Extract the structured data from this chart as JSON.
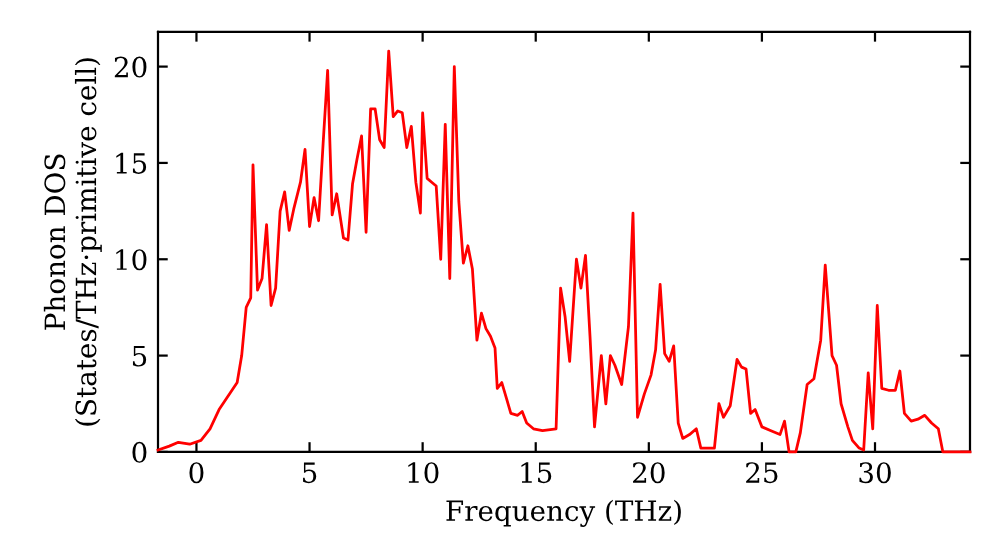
{
  "chart_data": {
    "type": "line",
    "xlabel": "Frequency (THz)",
    "ylabel": "Phonon DOS\n(States/THz·primitive cell)",
    "xlim": [
      -1.7,
      34.2
    ],
    "ylim": [
      0,
      21.8
    ],
    "xticks": [
      0,
      5,
      10,
      15,
      20,
      25,
      30
    ],
    "yticks": [
      0,
      5,
      10,
      15,
      20
    ],
    "grid": false,
    "marker": "none",
    "line_style": "solid",
    "series": [
      {
        "color": "#ff0000",
        "x": [
          -1.7,
          -1.2,
          -0.8,
          -0.3,
          0.2,
          0.6,
          1.0,
          1.4,
          1.8,
          2.0,
          2.2,
          2.4,
          2.5,
          2.7,
          2.9,
          3.1,
          3.3,
          3.5,
          3.7,
          3.9,
          4.1,
          4.3,
          4.6,
          4.8,
          5.0,
          5.2,
          5.4,
          5.6,
          5.8,
          6.0,
          6.2,
          6.5,
          6.7,
          6.9,
          7.1,
          7.3,
          7.5,
          7.7,
          7.9,
          8.1,
          8.3,
          8.5,
          8.7,
          8.9,
          9.1,
          9.3,
          9.5,
          9.7,
          9.9,
          10.0,
          10.2,
          10.4,
          10.6,
          10.8,
          11.0,
          11.2,
          11.4,
          11.6,
          11.8,
          12.0,
          12.2,
          12.4,
          12.6,
          12.8,
          13.0,
          13.2,
          13.3,
          13.5,
          13.7,
          13.9,
          14.2,
          14.4,
          14.6,
          14.9,
          15.3,
          15.9,
          16.1,
          16.3,
          16.5,
          16.8,
          17.0,
          17.2,
          17.4,
          17.6,
          17.9,
          18.1,
          18.3,
          18.5,
          18.8,
          19.1,
          19.3,
          19.5,
          19.8,
          20.1,
          20.3,
          20.5,
          20.7,
          20.9,
          21.1,
          21.3,
          21.5,
          21.8,
          22.1,
          22.3,
          22.9,
          23.1,
          23.3,
          23.6,
          23.9,
          24.1,
          24.3,
          24.5,
          24.7,
          25.0,
          25.4,
          25.8,
          26.0,
          26.2,
          26.5,
          26.7,
          27.0,
          27.3,
          27.6,
          27.8,
          28.1,
          28.3,
          28.5,
          28.8,
          29.0,
          29.3,
          29.5,
          29.7,
          29.9,
          30.1,
          30.3,
          30.6,
          30.9,
          31.1,
          31.3,
          31.6,
          31.9,
          32.2,
          32.5,
          32.8,
          33.0,
          34.2
        ],
        "values": [
          0.1,
          0.3,
          0.5,
          0.4,
          0.6,
          1.2,
          2.2,
          2.9,
          3.6,
          5.0,
          7.5,
          8.0,
          14.9,
          8.4,
          9.0,
          11.8,
          7.6,
          8.5,
          12.5,
          13.5,
          11.5,
          12.6,
          14.0,
          15.7,
          11.7,
          13.2,
          12.0,
          16.0,
          19.8,
          12.3,
          13.4,
          11.1,
          11.0,
          13.9,
          15.2,
          16.4,
          11.4,
          17.8,
          17.8,
          16.2,
          15.8,
          20.8,
          17.4,
          17.7,
          17.6,
          15.8,
          16.9,
          14.0,
          12.4,
          17.6,
          14.2,
          14.0,
          13.8,
          10.0,
          17.0,
          9.0,
          20.0,
          13.0,
          9.8,
          10.7,
          9.5,
          5.8,
          7.2,
          6.4,
          6.0,
          5.4,
          3.3,
          3.6,
          2.8,
          2.0,
          1.9,
          2.1,
          1.5,
          1.2,
          1.1,
          1.2,
          8.5,
          7.0,
          4.7,
          10.0,
          8.5,
          10.2,
          6.0,
          1.3,
          5.0,
          2.5,
          5.0,
          4.5,
          3.5,
          6.5,
          12.4,
          1.8,
          3.0,
          4.0,
          5.3,
          8.7,
          5.1,
          4.7,
          5.5,
          1.5,
          0.7,
          0.9,
          1.2,
          0.2,
          0.2,
          2.5,
          1.8,
          2.4,
          4.8,
          4.4,
          4.3,
          2.0,
          2.2,
          1.3,
          1.1,
          0.9,
          1.6,
          0.0,
          0.0,
          1.0,
          3.5,
          3.8,
          5.8,
          9.7,
          5.0,
          4.5,
          2.5,
          1.3,
          0.6,
          0.2,
          0.1,
          4.1,
          1.2,
          7.6,
          3.3,
          3.2,
          3.2,
          4.2,
          2.0,
          1.6,
          1.7,
          1.9,
          1.5,
          1.2,
          0.0,
          0.0
        ]
      }
    ]
  }
}
